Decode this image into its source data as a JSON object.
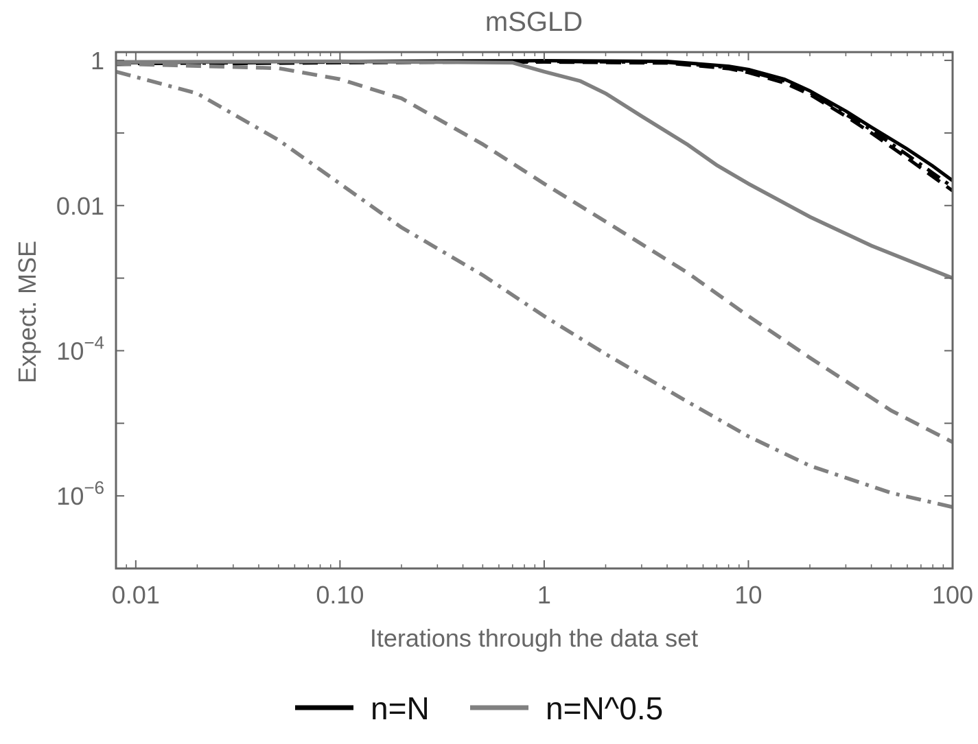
{
  "chart_data": {
    "type": "line",
    "title": "mSGLD",
    "xlabel": "Iterations through the data set",
    "ylabel": "Expect. MSE",
    "x_scale": "log",
    "y_scale": "log",
    "xlim": [
      0.008,
      100
    ],
    "ylim": [
      1e-07,
      1.3
    ],
    "x_ticks": [
      {
        "value": 0.01,
        "label": "0.01"
      },
      {
        "value": 0.1,
        "label": "0.10"
      },
      {
        "value": 1,
        "label": "1"
      },
      {
        "value": 10,
        "label": "10"
      },
      {
        "value": 100,
        "label": "100"
      }
    ],
    "y_ticks": [
      {
        "value": 1,
        "base": "1",
        "exp": ""
      },
      {
        "value": 0.01,
        "base": "0.01",
        "exp": ""
      },
      {
        "value": 0.0001,
        "base": "10",
        "exp": "−4"
      },
      {
        "value": 1e-06,
        "base": "10",
        "exp": "−6"
      }
    ],
    "grid": false,
    "legend_position": "bottom",
    "legend": [
      {
        "label": "n=N",
        "color": "#000000"
      },
      {
        "label": "n=N^0.5",
        "color": "#808080"
      }
    ],
    "series": [
      {
        "color": "#000000",
        "dash": "solid",
        "x": [
          0.008,
          0.1,
          1,
          4,
          8,
          10,
          15,
          20,
          30,
          40,
          60,
          80,
          100
        ],
        "y": [
          0.93,
          0.97,
          0.99,
          0.97,
          0.83,
          0.75,
          0.55,
          0.38,
          0.2,
          0.12,
          0.06,
          0.035,
          0.022
        ]
      },
      {
        "color": "#000000",
        "dash": "dash",
        "x": [
          0.008,
          0.1,
          1,
          4,
          8,
          10,
          15,
          20,
          30,
          40,
          60,
          80,
          100
        ],
        "y": [
          0.88,
          0.93,
          0.95,
          0.92,
          0.77,
          0.68,
          0.49,
          0.34,
          0.17,
          0.1,
          0.045,
          0.025,
          0.016
        ]
      },
      {
        "color": "#000000",
        "dash": "dashdot",
        "x": [
          0.008,
          0.1,
          1,
          4,
          8,
          10,
          15,
          20,
          30,
          40,
          60,
          80,
          100
        ],
        "y": [
          0.9,
          0.95,
          0.97,
          0.94,
          0.8,
          0.71,
          0.52,
          0.36,
          0.18,
          0.11,
          0.05,
          0.028,
          0.018
        ]
      },
      {
        "color": "#808080",
        "dash": "solid",
        "x": [
          0.008,
          0.1,
          0.7,
          1,
          1.5,
          2,
          3,
          5,
          7,
          10,
          20,
          40,
          100
        ],
        "y": [
          0.95,
          0.97,
          0.93,
          0.7,
          0.52,
          0.35,
          0.17,
          0.07,
          0.036,
          0.02,
          0.007,
          0.0028,
          0.001
        ]
      },
      {
        "color": "#808080",
        "dash": "dash",
        "x": [
          0.008,
          0.05,
          0.1,
          0.2,
          0.5,
          1,
          2,
          5,
          10,
          20,
          50,
          100
        ],
        "y": [
          0.9,
          0.78,
          0.55,
          0.3,
          0.07,
          0.02,
          0.006,
          0.0012,
          0.0003,
          8e-05,
          1.5e-05,
          5.5e-06
        ]
      },
      {
        "color": "#808080",
        "dash": "dashdot",
        "x": [
          0.008,
          0.02,
          0.05,
          0.1,
          0.2,
          0.5,
          1,
          2,
          5,
          10,
          20,
          50,
          100
        ],
        "y": [
          0.7,
          0.35,
          0.08,
          0.02,
          0.005,
          0.0011,
          0.0003,
          9e-05,
          2e-05,
          6.6e-06,
          2.6e-06,
          1.1e-06,
          7e-07
        ]
      }
    ]
  }
}
